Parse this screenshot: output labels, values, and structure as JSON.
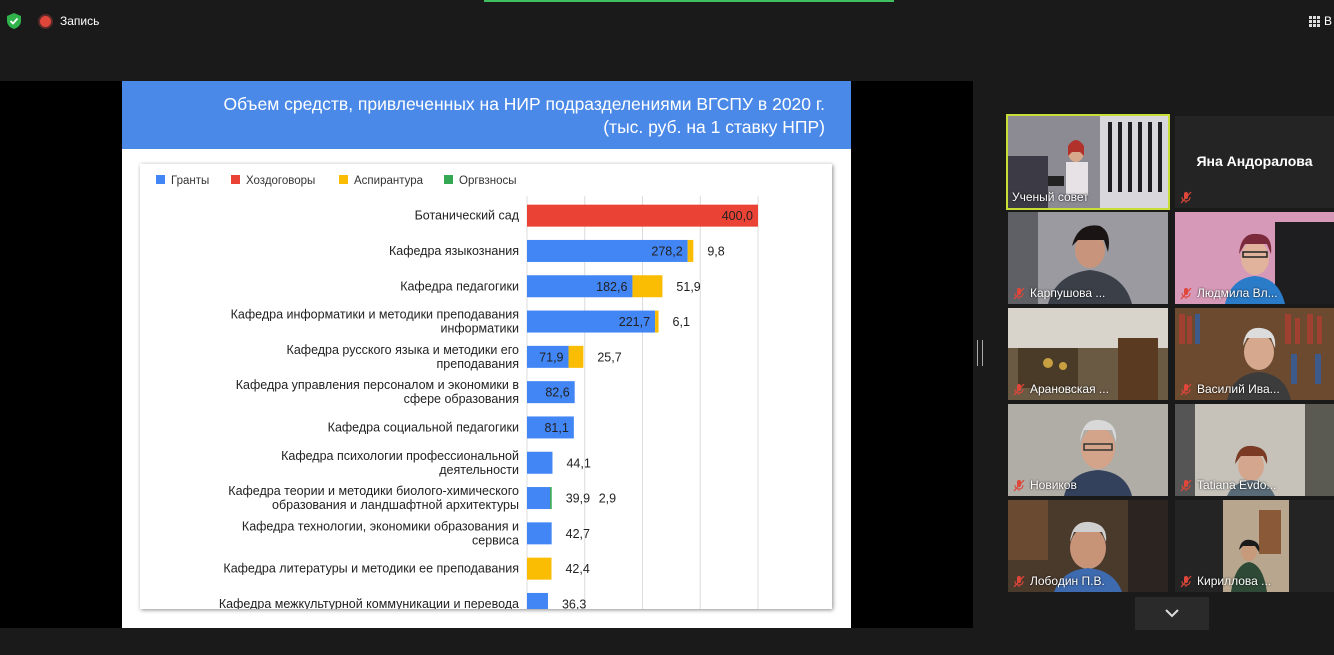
{
  "topbar": {
    "recording_label": "Запись",
    "view_label": "В"
  },
  "slide": {
    "title_line1": "Объем средств, привлеченных на НИР подразделениями ВГСПУ в 2020 г.",
    "title_line2": "(тыс. руб. на 1 ставку НПР)"
  },
  "chart_data": {
    "type": "bar",
    "orientation": "horizontal",
    "stacked": true,
    "legend": [
      "Гранты",
      "Хоздоговоры",
      "Аспирантура",
      "Оргвзносы"
    ],
    "legend_position": "top-left",
    "colors": {
      "Гранты": "#4285f4",
      "Хоздоговоры": "#ea4335",
      "Аспирантура": "#fbbc04",
      "Оргвзносы": "#34a853"
    },
    "grid": true,
    "categories": [
      [
        "Ботанический сад"
      ],
      [
        "Кафедра языкознания"
      ],
      [
        "Кафедра педагогики"
      ],
      [
        "Кафедра информатики и методики преподавания",
        "информатики"
      ],
      [
        "Кафедра русского языка и методики его",
        "преподавания"
      ],
      [
        "Кафедра управления персоналом и экономики в",
        "сфере образования"
      ],
      [
        "Кафедра социальной педагогики"
      ],
      [
        "Кафедра психологии профессиональной",
        "деятельности"
      ],
      [
        "Кафедра теории и методики биолого-химического",
        "образования и ландшафтной архитектуры"
      ],
      [
        "Кафедра технологии, экономики образования и",
        "сервиса"
      ],
      [
        "Кафедра литературы и методики ее преподавания"
      ],
      [
        "Кафедра межкультурной коммуникации и перевода"
      ]
    ],
    "series": [
      {
        "name": "Гранты",
        "values": [
          0,
          278.2,
          182.6,
          221.7,
          71.9,
          82.6,
          81.1,
          44.1,
          39.9,
          42.7,
          0,
          36.3
        ]
      },
      {
        "name": "Хоздоговоры",
        "values": [
          400.0,
          0,
          0,
          0,
          0,
          0,
          0,
          0,
          0,
          0,
          0,
          0
        ]
      },
      {
        "name": "Аспирантура",
        "values": [
          0,
          9.8,
          51.9,
          6.1,
          25.7,
          0,
          0,
          0,
          0,
          0,
          42.4,
          0
        ]
      },
      {
        "name": "Оргвзносы",
        "values": [
          0,
          0,
          0,
          0,
          0,
          0,
          0,
          0,
          2.9,
          0,
          0,
          0
        ]
      }
    ],
    "value_labels": [
      [
        "400,0"
      ],
      [
        "278,2",
        "9,8"
      ],
      [
        "182,6",
        "51,9"
      ],
      [
        "221,7",
        "6,1"
      ],
      [
        "71,9",
        "25,7"
      ],
      [
        "82,6"
      ],
      [
        "81,1"
      ],
      [
        "44,1"
      ],
      [
        "39,9",
        "2,9"
      ],
      [
        "42,7"
      ],
      [
        "42,4"
      ],
      [
        "36,3"
      ]
    ],
    "xlim": [
      0,
      400
    ]
  },
  "participants": [
    {
      "name": "Ученый совет",
      "active": true,
      "muted": false
    },
    {
      "name": "Яна Андоралова",
      "muted": true
    },
    {
      "name": "Карпушова ...",
      "muted": true
    },
    {
      "name": "Людмила Вл...",
      "muted": true
    },
    {
      "name": "Арановская ...",
      "muted": true
    },
    {
      "name": "Василий Ива...",
      "muted": true
    },
    {
      "name": "Новиков",
      "muted": true
    },
    {
      "name": "Tatiana Evdo...",
      "muted": true
    },
    {
      "name": "Лободин П.В.",
      "muted": true
    },
    {
      "name": "Кириллова ...",
      "muted": true
    }
  ]
}
